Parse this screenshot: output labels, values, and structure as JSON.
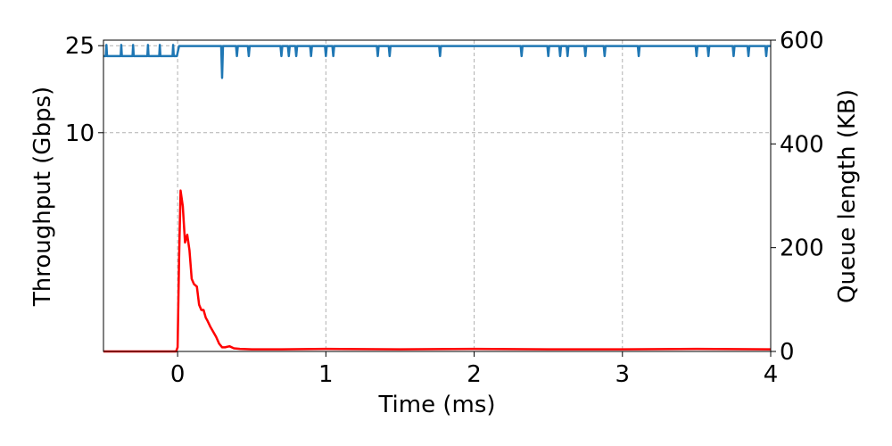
{
  "chart_data": {
    "type": "line",
    "xlabel": "Time (ms)",
    "ylabel_left": "Throughput (Gbps)",
    "ylabel_right": "Queue length (KB)",
    "xlim": [
      -0.5,
      4
    ],
    "ylim_left": [
      1,
      26.5
    ],
    "ylim_right": [
      0,
      600
    ],
    "yscale_left": "log",
    "xticks": [
      0,
      1,
      2,
      3,
      4
    ],
    "yticks_left": [
      10,
      25
    ],
    "yticks_right": [
      0,
      200,
      400,
      600
    ],
    "grid": true,
    "series": [
      {
        "axis": "left",
        "color": "#1f77b4",
        "base_before": 22.4,
        "base_after": 24.9,
        "spike_peak": 25.2,
        "switch_x": 0.0,
        "spikes_before": [
          -0.48,
          -0.38,
          -0.3,
          -0.2,
          -0.12,
          -0.03
        ],
        "dips_after": [
          {
            "x": 0.3,
            "y": 17.8
          },
          {
            "x": 0.4,
            "y": 22.4
          },
          {
            "x": 0.48,
            "y": 22.4
          },
          {
            "x": 0.7,
            "y": 22.4
          },
          {
            "x": 0.75,
            "y": 22.4
          },
          {
            "x": 0.8,
            "y": 22.4
          },
          {
            "x": 0.9,
            "y": 22.4
          },
          {
            "x": 1.0,
            "y": 22.4
          },
          {
            "x": 1.05,
            "y": 22.4
          },
          {
            "x": 1.35,
            "y": 22.4
          },
          {
            "x": 1.43,
            "y": 22.4
          },
          {
            "x": 1.77,
            "y": 22.4
          },
          {
            "x": 2.32,
            "y": 22.4
          },
          {
            "x": 2.5,
            "y": 22.4
          },
          {
            "x": 2.58,
            "y": 22.4
          },
          {
            "x": 2.63,
            "y": 22.4
          },
          {
            "x": 2.75,
            "y": 22.4
          },
          {
            "x": 2.88,
            "y": 22.4
          },
          {
            "x": 3.11,
            "y": 22.4
          },
          {
            "x": 3.5,
            "y": 22.4
          },
          {
            "x": 3.58,
            "y": 22.4
          },
          {
            "x": 3.75,
            "y": 22.4
          },
          {
            "x": 3.85,
            "y": 22.4
          },
          {
            "x": 3.97,
            "y": 22.4
          }
        ]
      },
      {
        "axis": "right",
        "color": "#ff0000",
        "x": [
          -0.5,
          -0.01,
          0.0,
          0.01,
          0.02,
          0.035,
          0.05,
          0.065,
          0.08,
          0.095,
          0.11,
          0.13,
          0.145,
          0.16,
          0.175,
          0.19,
          0.2,
          0.22,
          0.24,
          0.26,
          0.28,
          0.3,
          0.32,
          0.35,
          0.38,
          0.42,
          0.5,
          0.7,
          1.0,
          1.5,
          2.0,
          2.5,
          3.0,
          3.5,
          4.0
        ],
        "y": [
          0,
          0,
          8,
          180,
          310,
          280,
          210,
          225,
          195,
          140,
          130,
          125,
          90,
          80,
          80,
          65,
          60,
          48,
          38,
          28,
          15,
          8,
          8,
          10,
          6,
          5,
          4,
          4,
          5,
          4,
          5,
          4,
          4,
          5,
          4
        ]
      }
    ]
  }
}
